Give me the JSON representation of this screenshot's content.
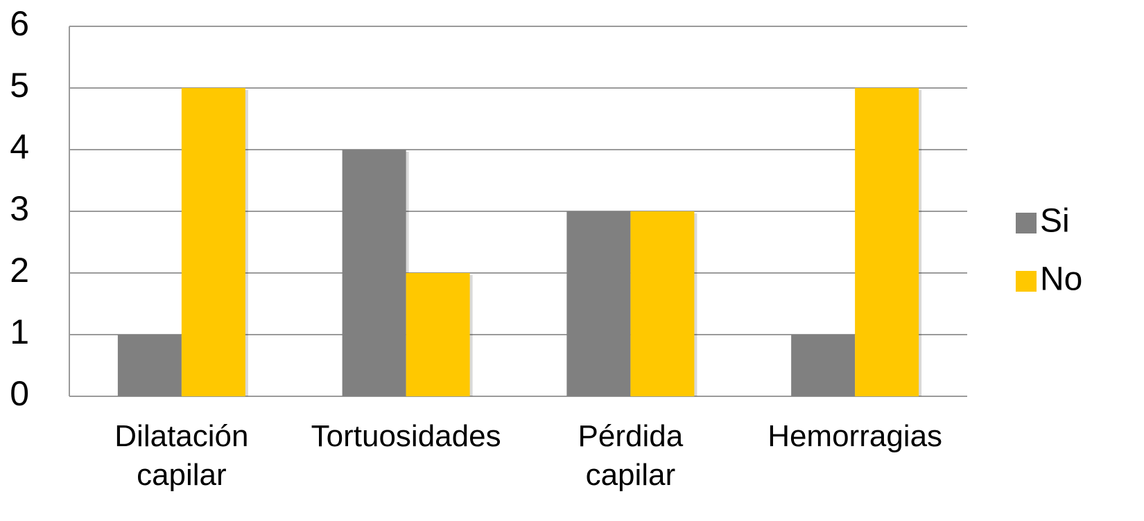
{
  "chart_data": {
    "type": "bar",
    "categories": [
      "Dilatación capilar",
      "Tortuosidades",
      "Pérdida capilar",
      "Hemorragias"
    ],
    "series": [
      {
        "name": "Si",
        "color": "#808080",
        "values": [
          1,
          4,
          3,
          1
        ]
      },
      {
        "name": "No",
        "color": "#ffc800",
        "values": [
          5,
          2,
          3,
          5
        ]
      }
    ],
    "ylim": [
      0,
      6
    ],
    "yticks": [
      0,
      1,
      2,
      3,
      4,
      5,
      6
    ],
    "grid": true,
    "legend": "right"
  }
}
